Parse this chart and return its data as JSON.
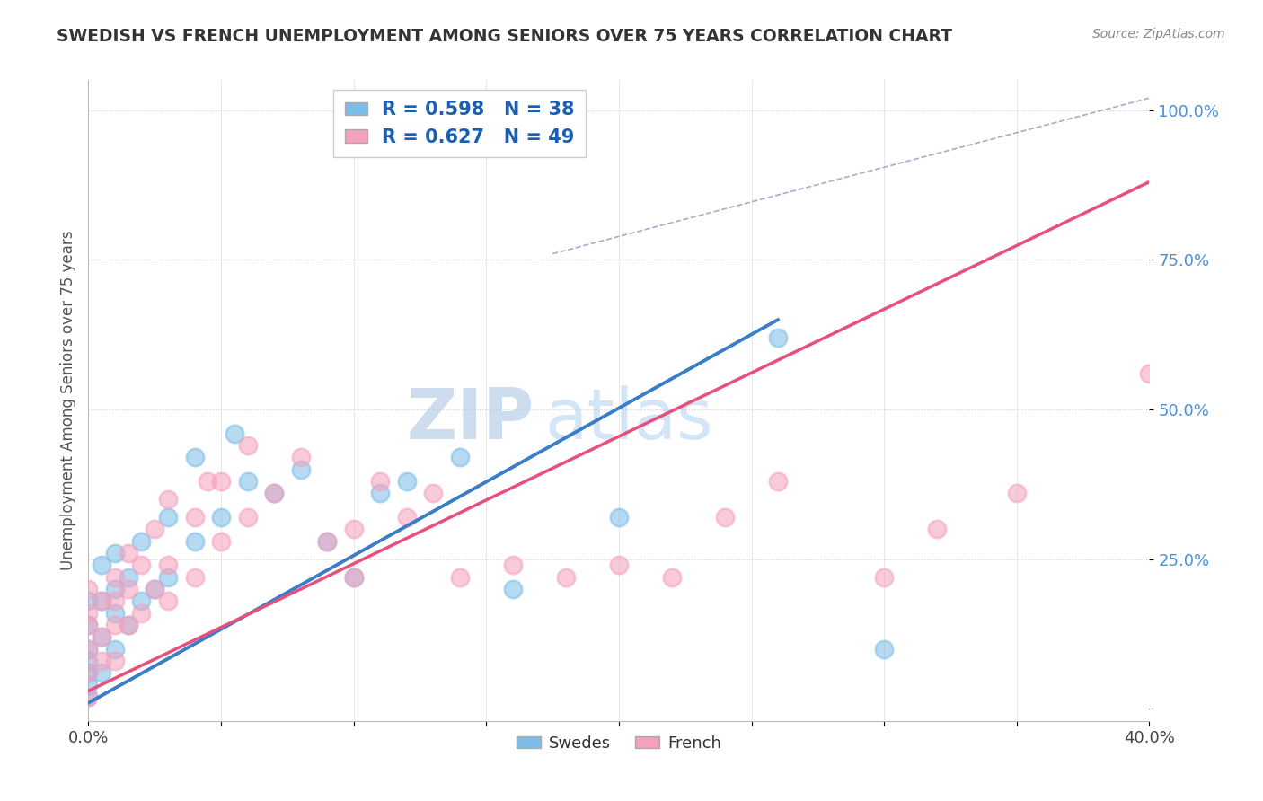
{
  "title": "SWEDISH VS FRENCH UNEMPLOYMENT AMONG SENIORS OVER 75 YEARS CORRELATION CHART",
  "source": "Source: ZipAtlas.com",
  "ylabel": "Unemployment Among Seniors over 75 years",
  "xlabel": "",
  "xlim": [
    0.0,
    0.4
  ],
  "ylim": [
    -0.02,
    1.05
  ],
  "yticks": [
    0.0,
    0.25,
    0.5,
    0.75,
    1.0
  ],
  "yticklabels": [
    "",
    "25.0%",
    "50.0%",
    "75.0%",
    "100.0%"
  ],
  "swedish_R": 0.598,
  "swedish_N": 38,
  "french_R": 0.627,
  "french_N": 49,
  "swedish_color": "#7bbde8",
  "french_color": "#f5a0bc",
  "swedish_line_color": "#3a7dc9",
  "french_line_color": "#e8507a",
  "ref_line_color": "#aaaacc",
  "background_color": "#ffffff",
  "watermark_zip": "ZIP",
  "watermark_atlas": "atlas",
  "swedish_line_x0": 0.0,
  "swedish_line_y0": 0.01,
  "swedish_line_x1": 0.26,
  "swedish_line_y1": 0.65,
  "french_line_x0": 0.0,
  "french_line_y0": 0.03,
  "french_line_x1": 0.4,
  "french_line_y1": 0.88,
  "ref_line_x0": 0.175,
  "ref_line_y0": 0.76,
  "ref_line_x1": 0.4,
  "ref_line_y1": 1.02,
  "swedish_points_x": [
    0.0,
    0.0,
    0.0,
    0.0,
    0.0,
    0.0,
    0.0,
    0.005,
    0.005,
    0.005,
    0.005,
    0.01,
    0.01,
    0.01,
    0.01,
    0.015,
    0.015,
    0.02,
    0.02,
    0.025,
    0.03,
    0.03,
    0.04,
    0.04,
    0.05,
    0.055,
    0.06,
    0.07,
    0.08,
    0.09,
    0.1,
    0.11,
    0.12,
    0.14,
    0.16,
    0.2,
    0.26,
    0.3
  ],
  "swedish_points_y": [
    0.02,
    0.04,
    0.06,
    0.08,
    0.1,
    0.14,
    0.18,
    0.06,
    0.12,
    0.18,
    0.24,
    0.1,
    0.16,
    0.2,
    0.26,
    0.14,
    0.22,
    0.18,
    0.28,
    0.2,
    0.22,
    0.32,
    0.28,
    0.42,
    0.32,
    0.46,
    0.38,
    0.36,
    0.4,
    0.28,
    0.22,
    0.36,
    0.38,
    0.42,
    0.2,
    0.32,
    0.62,
    0.1
  ],
  "french_points_x": [
    0.0,
    0.0,
    0.0,
    0.0,
    0.0,
    0.0,
    0.005,
    0.005,
    0.005,
    0.01,
    0.01,
    0.01,
    0.01,
    0.015,
    0.015,
    0.015,
    0.02,
    0.02,
    0.025,
    0.025,
    0.03,
    0.03,
    0.03,
    0.04,
    0.04,
    0.045,
    0.05,
    0.05,
    0.06,
    0.06,
    0.07,
    0.08,
    0.09,
    0.1,
    0.1,
    0.11,
    0.12,
    0.13,
    0.14,
    0.16,
    0.18,
    0.2,
    0.22,
    0.24,
    0.26,
    0.3,
    0.32,
    0.35,
    0.4
  ],
  "french_points_y": [
    0.02,
    0.06,
    0.1,
    0.14,
    0.16,
    0.2,
    0.08,
    0.12,
    0.18,
    0.08,
    0.14,
    0.18,
    0.22,
    0.14,
    0.2,
    0.26,
    0.16,
    0.24,
    0.2,
    0.3,
    0.18,
    0.24,
    0.35,
    0.22,
    0.32,
    0.38,
    0.28,
    0.38,
    0.32,
    0.44,
    0.36,
    0.42,
    0.28,
    0.3,
    0.22,
    0.38,
    0.32,
    0.36,
    0.22,
    0.24,
    0.22,
    0.24,
    0.22,
    0.32,
    0.38,
    0.22,
    0.3,
    0.36,
    0.56
  ]
}
